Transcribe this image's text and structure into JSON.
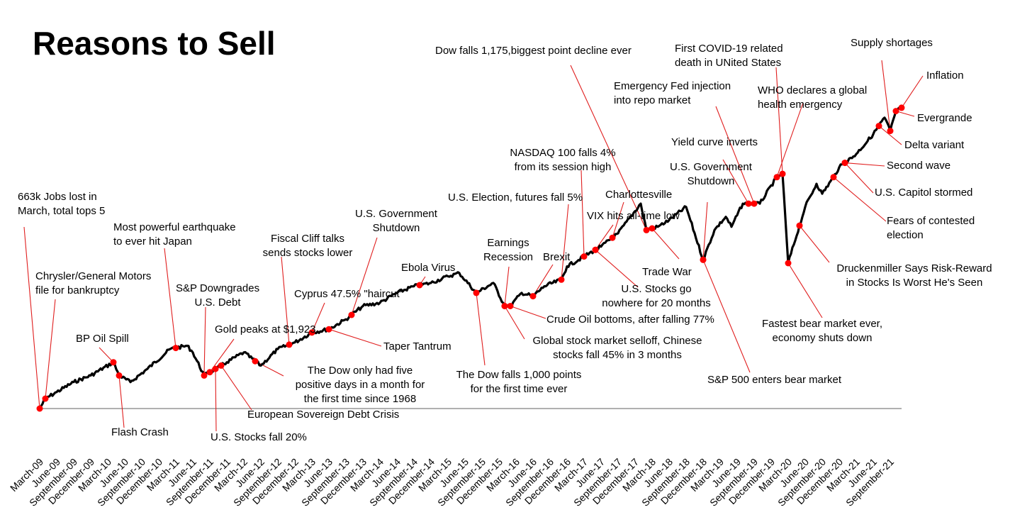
{
  "chart_data": {
    "type": "line",
    "title": "Reasons to Sell",
    "xlabel": "",
    "ylabel": "",
    "grid": false,
    "legend": "none",
    "line_color": "#000000",
    "marker_color": "#ff0000",
    "leader_color": "#e01e1e",
    "x_ticks": [
      "March-09",
      "June-09",
      "September-09",
      "December-09",
      "March-10",
      "June-10",
      "September-10",
      "December-10",
      "March-11",
      "June-11",
      "September-11",
      "December-11",
      "March-12",
      "June-12",
      "September-12",
      "December-12",
      "March-13",
      "June-13",
      "September-13",
      "December-13",
      "March-14",
      "June-14",
      "September-14",
      "December-14",
      "March-15",
      "June-15",
      "September-15",
      "December-15",
      "March-16",
      "June-16",
      "September-16",
      "December-16",
      "March-17",
      "June-17",
      "September-17",
      "December-17",
      "March-18",
      "June-18",
      "September-18",
      "December-18",
      "March-19",
      "June-19",
      "September-19",
      "December-19",
      "March-20",
      "June-20",
      "September-20",
      "December-20",
      "March-21",
      "June-21",
      "September-21"
    ],
    "x_range": [
      "2009-03",
      "2021-11"
    ],
    "y_range": [
      0,
      100
    ],
    "y_note": "relative index; no y-axis printed",
    "series": [
      {
        "points": [
          [
            "2009-03",
            0
          ],
          [
            "2009-04",
            3
          ],
          [
            "2009-06",
            5
          ],
          [
            "2009-09",
            8
          ],
          [
            "2009-12",
            10
          ],
          [
            "2010-04",
            14
          ],
          [
            "2010-05",
            10
          ],
          [
            "2010-07",
            8
          ],
          [
            "2010-10",
            12
          ],
          [
            "2011-02",
            18
          ],
          [
            "2011-05",
            19
          ],
          [
            "2011-06",
            17
          ],
          [
            "2011-08",
            10
          ],
          [
            "2011-10",
            12
          ],
          [
            "2011-12",
            14
          ],
          [
            "2012-03",
            17
          ],
          [
            "2012-06",
            13
          ],
          [
            "2012-09",
            18
          ],
          [
            "2012-12",
            20
          ],
          [
            "2013-03",
            23
          ],
          [
            "2013-06",
            24
          ],
          [
            "2013-09",
            27
          ],
          [
            "2013-12",
            31
          ],
          [
            "2014-03",
            32
          ],
          [
            "2014-06",
            35
          ],
          [
            "2014-09",
            37
          ],
          [
            "2014-12",
            38
          ],
          [
            "2015-03",
            40
          ],
          [
            "2015-05",
            41
          ],
          [
            "2015-08",
            35
          ],
          [
            "2015-11",
            38
          ],
          [
            "2016-01",
            31
          ],
          [
            "2016-02",
            31
          ],
          [
            "2016-04",
            35
          ],
          [
            "2016-06",
            34
          ],
          [
            "2016-08",
            37
          ],
          [
            "2016-11",
            39
          ],
          [
            "2016-12",
            43
          ],
          [
            "2017-03",
            46
          ],
          [
            "2017-06",
            49
          ],
          [
            "2017-09",
            53
          ],
          [
            "2018-01",
            62
          ],
          [
            "2018-02",
            54
          ],
          [
            "2018-04",
            55
          ],
          [
            "2018-06",
            57
          ],
          [
            "2018-09",
            61
          ],
          [
            "2018-12",
            45
          ],
          [
            "2019-02",
            54
          ],
          [
            "2019-04",
            58
          ],
          [
            "2019-05",
            55
          ],
          [
            "2019-07",
            62
          ],
          [
            "2019-10",
            62
          ],
          [
            "2020-01",
            70
          ],
          [
            "2020-02",
            71
          ],
          [
            "2020-03",
            44
          ],
          [
            "2020-06",
            61
          ],
          [
            "2020-08",
            68
          ],
          [
            "2020-09",
            65
          ],
          [
            "2020-11",
            70
          ],
          [
            "2020-12",
            73
          ],
          [
            "2021-03",
            77
          ],
          [
            "2021-06",
            83
          ],
          [
            "2021-08",
            88
          ],
          [
            "2021-09",
            84
          ],
          [
            "2021-10",
            90
          ],
          [
            "2021-11",
            91
          ]
        ]
      }
    ],
    "annotations": [
      {
        "text": "663k Jobs lost in March, total tops 5",
        "date": "2009-03"
      },
      {
        "text": "Chrysler/General Motors file for bankruptcy",
        "date": "2009-04"
      },
      {
        "text": "BP Oil Spill",
        "date": "2010-04"
      },
      {
        "text": "Flash Crash",
        "date": "2010-05"
      },
      {
        "text": "Most powerful earthquake to ever hit Japan",
        "date": "2011-03"
      },
      {
        "text": "S&P Downgrades U.S. Debt",
        "date": "2011-08"
      },
      {
        "text": "U.S. Stocks fall 20%",
        "date": "2011-10"
      },
      {
        "text": "Gold peaks at $1,923",
        "date": "2011-09"
      },
      {
        "text": "European Sovereign Debt Crisis",
        "date": "2011-11"
      },
      {
        "text": "The Dow only had five positive days in a month for the first time since 1968",
        "date": "2012-05"
      },
      {
        "text": "Fiscal Cliff talks sends stocks lower",
        "date": "2012-11"
      },
      {
        "text": "Cyprus 47.5% \"haircut\"",
        "date": "2013-03"
      },
      {
        "text": "Taper Tantrum",
        "date": "2013-06"
      },
      {
        "text": "U.S. Government Shutdown",
        "date": "2013-10"
      },
      {
        "text": "Ebola Virus",
        "date": "2014-10"
      },
      {
        "text": "The Dow falls 1,000 points for the first time ever",
        "date": "2015-08"
      },
      {
        "text": "Earnings Recession",
        "date": "2016-01"
      },
      {
        "text": "Global stock market selloff, Chinese stocks fall 45% in 3 months",
        "date": "2016-01"
      },
      {
        "text": "Crude Oil bottoms, after falling 77%",
        "date": "2016-02"
      },
      {
        "text": "Brexit",
        "date": "2016-06"
      },
      {
        "text": "U.S. Election, futures fall 5%",
        "date": "2016-11"
      },
      {
        "text": "NASDAQ 100 falls 4% from its session high",
        "date": "2017-03"
      },
      {
        "text": "VIX hits all-time low",
        "date": "2017-05"
      },
      {
        "text": "Charlottesville",
        "date": "2017-08"
      },
      {
        "text": "U.S. Stocks go nowhere for 20 months",
        "date": "2017-05"
      },
      {
        "text": "Dow falls 1,175,biggest point decline ever",
        "date": "2018-02"
      },
      {
        "text": "Trade War",
        "date": "2018-03"
      },
      {
        "text": "U.S. Government Shutdown",
        "date": "2018-12"
      },
      {
        "text": "Yield curve inverts",
        "date": "2019-08"
      },
      {
        "text": "Emergency Fed injection into repo market",
        "date": "2019-09"
      },
      {
        "text": "S&P 500 enters bear market",
        "date": "2018-12"
      },
      {
        "text": "First COVID-19 related death in UNited States",
        "date": "2020-02"
      },
      {
        "text": "WHO declares a global health emergency",
        "date": "2020-01"
      },
      {
        "text": "Fastest bear market ever, economy shuts down",
        "date": "2020-03"
      },
      {
        "text": "Druckenmiller Says Risk-Reward in Stocks Is Worst He's Seen",
        "date": "2020-05"
      },
      {
        "text": "Fears of contested election",
        "date": "2020-11"
      },
      {
        "text": "U.S. Capitol stormed",
        "date": "2021-01"
      },
      {
        "text": "Second wave",
        "date": "2021-01"
      },
      {
        "text": "Delta variant",
        "date": "2021-07"
      },
      {
        "text": "Supply shortages",
        "date": "2021-09"
      },
      {
        "text": "Evergrande",
        "date": "2021-10"
      },
      {
        "text": "Inflation",
        "date": "2021-11"
      }
    ]
  }
}
